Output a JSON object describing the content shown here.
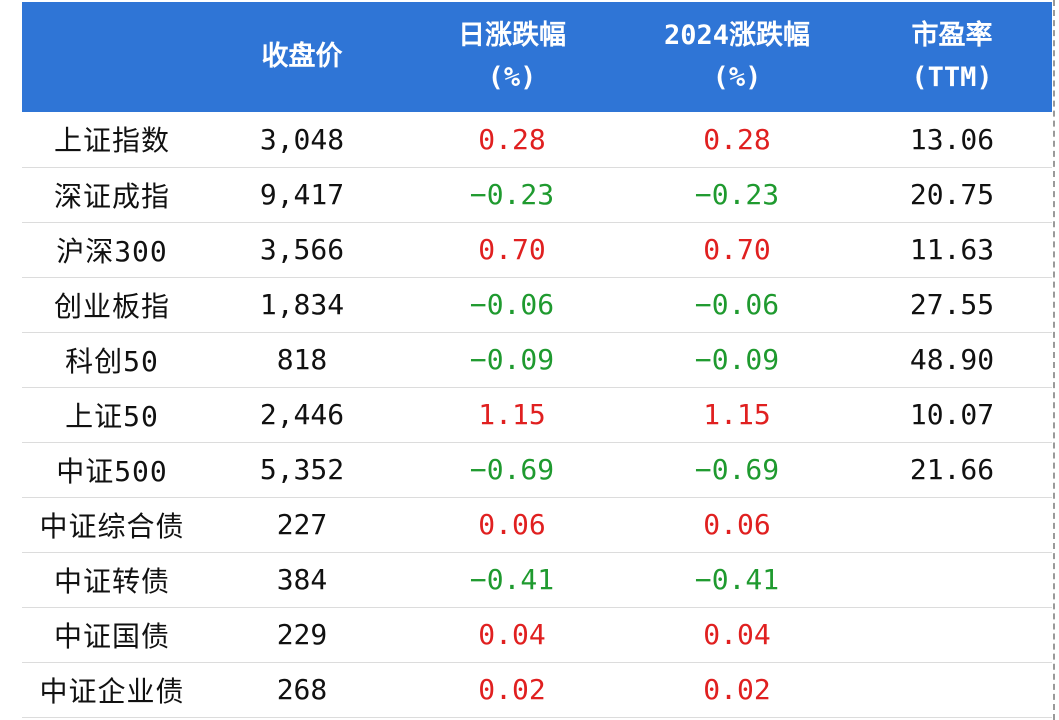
{
  "headers": {
    "name": "",
    "close": "收盘价",
    "daily_line1": "日涨跌幅",
    "daily_line2": "(%)",
    "ytd_line1": "2024涨跌幅",
    "ytd_line2": "(%)",
    "pe_line1": "市盈率",
    "pe_line2": "(TTM)"
  },
  "colors": {
    "header_bg": "#2f75d6",
    "positive": "#e02020",
    "negative": "#1f9a2f"
  },
  "rows": [
    {
      "name": "上证指数",
      "close": "3,048",
      "daily": "0.28",
      "ytd": "0.28",
      "pe": "13.06"
    },
    {
      "name": "深证成指",
      "close": "9,417",
      "daily": "−0.23",
      "ytd": "−0.23",
      "pe": "20.75"
    },
    {
      "name": "沪深300",
      "close": "3,566",
      "daily": "0.70",
      "ytd": "0.70",
      "pe": "11.63"
    },
    {
      "name": "创业板指",
      "close": "1,834",
      "daily": "−0.06",
      "ytd": "−0.06",
      "pe": "27.55"
    },
    {
      "name": "科创50",
      "close": "818",
      "daily": "−0.09",
      "ytd": "−0.09",
      "pe": "48.90"
    },
    {
      "name": "上证50",
      "close": "2,446",
      "daily": "1.15",
      "ytd": "1.15",
      "pe": "10.07"
    },
    {
      "name": "中证500",
      "close": "5,352",
      "daily": "−0.69",
      "ytd": "−0.69",
      "pe": "21.66"
    },
    {
      "name": "中证综合债",
      "close": "227",
      "daily": "0.06",
      "ytd": "0.06",
      "pe": ""
    },
    {
      "name": "中证转债",
      "close": "384",
      "daily": "−0.41",
      "ytd": "−0.41",
      "pe": ""
    },
    {
      "name": "中证国债",
      "close": "229",
      "daily": "0.04",
      "ytd": "0.04",
      "pe": ""
    },
    {
      "name": "中证企业债",
      "close": "268",
      "daily": "0.02",
      "ytd": "0.02",
      "pe": ""
    }
  ]
}
